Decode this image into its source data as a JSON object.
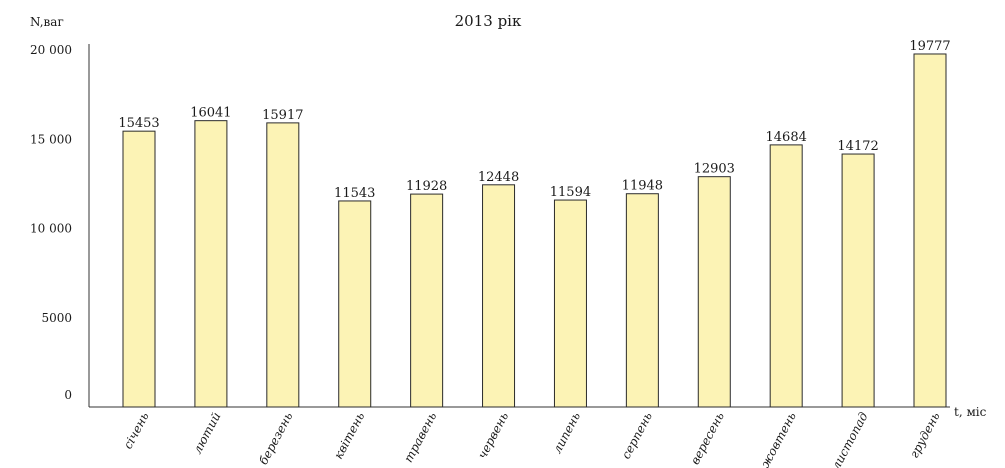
{
  "chart_data": {
    "type": "bar",
    "title": "2013 рік",
    "ylabel": "N,ваг",
    "xlabel": "t, міс",
    "categories": [
      "січень",
      "лютий",
      "березень",
      "квітень",
      "травень",
      "червень",
      "липень",
      "серпень",
      "вересень",
      "жовтень",
      "листопад",
      "грудень"
    ],
    "values": [
      15453,
      16041,
      15917,
      11543,
      11928,
      12448,
      11594,
      11948,
      12903,
      14684,
      14172,
      19777
    ],
    "value_labels": [
      "15453",
      "16041",
      "15917",
      "11543",
      "11928",
      "12448",
      "11594",
      "11948",
      "12903",
      "14684",
      "14172",
      "19777"
    ],
    "y_ticks": [
      {
        "value": 0,
        "label": "0"
      },
      {
        "value": 5000,
        "label": "5000"
      },
      {
        "value": 10000,
        "label": "10 000"
      },
      {
        "value": 15000,
        "label": "15 000"
      },
      {
        "value": 20000,
        "label": "20 000"
      }
    ],
    "ylim": [
      0,
      20000
    ],
    "grid": false,
    "legend": "none",
    "colors": {
      "bar_fill": "#fcf3b5",
      "bar_stroke": "#2a2a2a"
    }
  }
}
